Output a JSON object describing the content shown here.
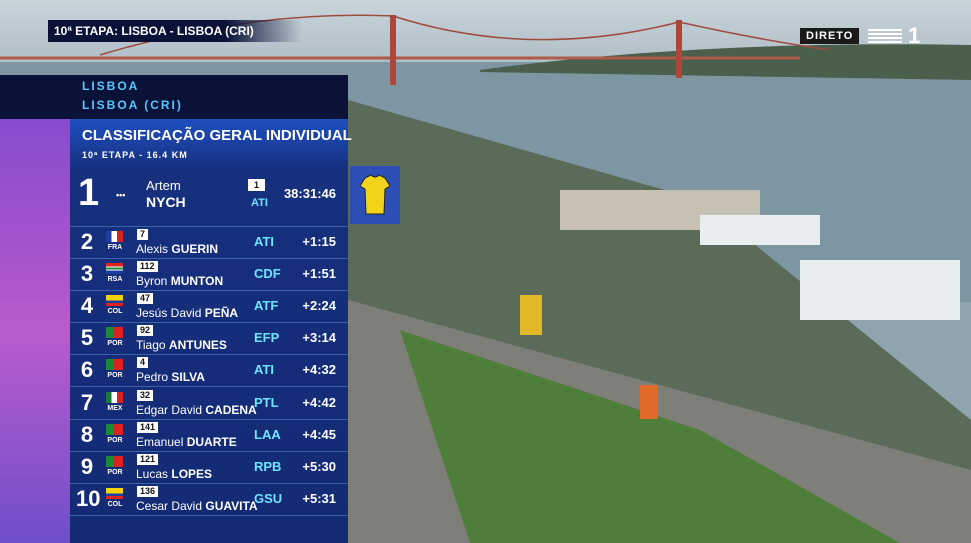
{
  "header": {
    "stage_label": "10ª ETAPA: LISBOA - LISBOA (CRI)",
    "live": "DIRETO",
    "channel": "1"
  },
  "panel": {
    "location": "LISBOA",
    "sublocation": "LISBOA (CRI)",
    "title": "CLASSIFICAÇÃO GERAL INDIVIDUAL",
    "subtitle": "10ª ETAPA - 16.4 KM"
  },
  "leader": {
    "rank": 1,
    "country": "•••",
    "bib": 1,
    "first_name": "Artem",
    "last_name": "NYCH",
    "team": "ATI",
    "time": "38:31:46"
  },
  "table": {
    "rows": [
      {
        "rank": 2,
        "country": "FRA",
        "bib": 7,
        "first_name": "Alexis",
        "last_name": "GUERIN",
        "team": "ATI",
        "gap": "+1:15"
      },
      {
        "rank": 3,
        "country": "RSA",
        "bib": 112,
        "first_name": "Byron",
        "last_name": "MUNTON",
        "team": "CDF",
        "gap": "+1:51"
      },
      {
        "rank": 4,
        "country": "COL",
        "bib": 47,
        "first_name": "Jesús David",
        "last_name": "PEÑA",
        "team": "ATF",
        "gap": "+2:24"
      },
      {
        "rank": 5,
        "country": "POR",
        "bib": 92,
        "first_name": "Tiago",
        "last_name": "ANTUNES",
        "team": "EFP",
        "gap": "+3:14"
      },
      {
        "rank": 6,
        "country": "POR",
        "bib": 4,
        "first_name": "Pedro",
        "last_name": "SILVA",
        "team": "ATI",
        "gap": "+4:32"
      },
      {
        "rank": 7,
        "country": "MEX",
        "bib": 32,
        "first_name": "Edgar David",
        "last_name": "CADENA",
        "team": "PTL",
        "gap": "+4:42"
      },
      {
        "rank": 8,
        "country": "POR",
        "bib": 141,
        "first_name": "Emanuel",
        "last_name": "DUARTE",
        "team": "LAA",
        "gap": "+4:45"
      },
      {
        "rank": 9,
        "country": "POR",
        "bib": 121,
        "first_name": "Lucas",
        "last_name": "LOPES",
        "team": "RPB",
        "gap": "+5:30"
      },
      {
        "rank": 10,
        "country": "COL",
        "bib": 136,
        "first_name": "Cesar David",
        "last_name": "GUAVITA",
        "team": "GSU",
        "gap": "+5:31"
      }
    ]
  }
}
